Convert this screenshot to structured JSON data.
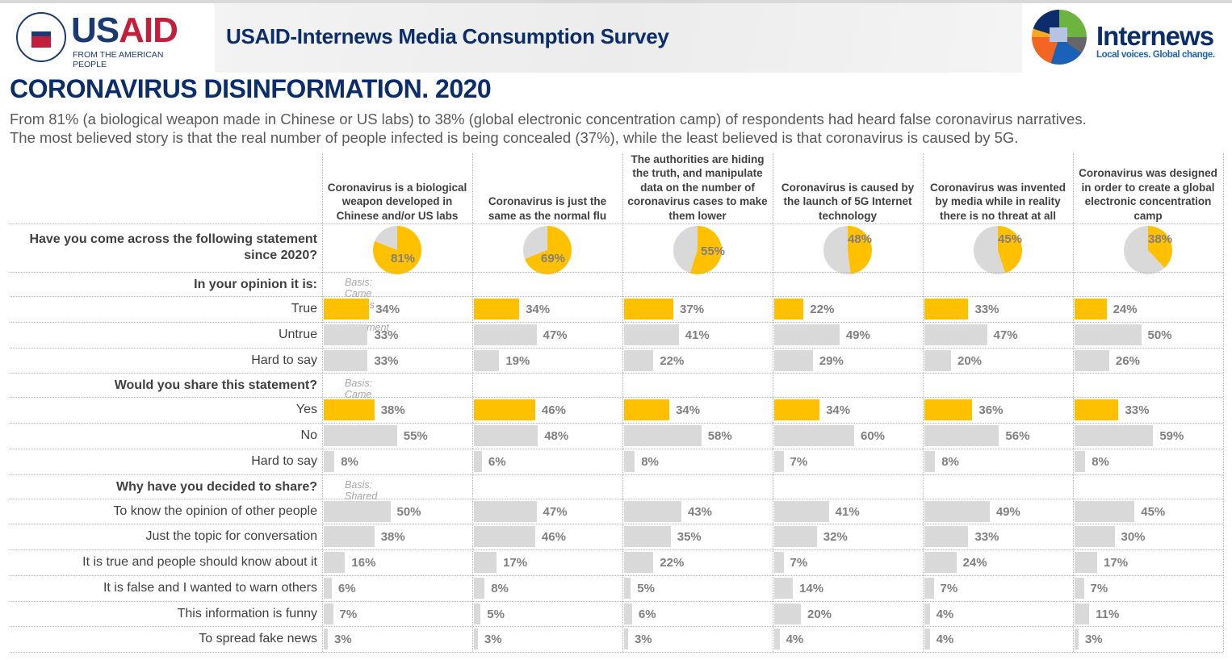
{
  "header": {
    "usaid_logo": {
      "brand_us": "US",
      "brand_aid": "AID",
      "tagline": "FROM THE AMERICAN PEOPLE"
    },
    "survey_title": "USAID-Internews Media Consumption Survey",
    "internews_logo": {
      "brand": "Internews",
      "tagline": "Local voices. Global change."
    }
  },
  "title": "CORONAVIRUS DISINFORMATION. 2020",
  "subtitle_lines": [
    "From 81% (a biological weapon made in Chinese or US labs) to 38% (global electronic concentration camp) of respondents had heard false coronavirus narratives.",
    "The most believed story is that the real number of people infected is being concealed (37%), while the least believed is that coronavirus is caused by 5G."
  ],
  "colors": {
    "highlight": "#FFC000",
    "neutral": "#D9D9D9",
    "navy": "#0B2D6B"
  },
  "chart_data": {
    "type": "table",
    "statements": [
      "Coronavirus is a biological weapon developed in Chinese and/or US labs",
      "Coronavirus is just the same as the normal flu",
      "The authorities are hiding the truth, and manipulate data on the number of coronavirus cases to make them lower",
      "Coronavirus is caused by the launch of  5G Internet technology",
      "Coronavirus was invented by media while in reality there is no threat at all",
      "Coronavirus was designed in order to create a global electronic concentration camp"
    ],
    "awareness": {
      "question": "Have you come across the following statement since 2020?",
      "type": "pie",
      "values": [
        81,
        69,
        55,
        48,
        45,
        38
      ]
    },
    "sections": [
      {
        "question": "In your opinion it is:",
        "basis": "Basis: Came across the statement",
        "rows": [
          {
            "label": "True",
            "highlight": true,
            "values": [
              34,
              34,
              37,
              22,
              33,
              24
            ]
          },
          {
            "label": "Untrue",
            "highlight": false,
            "values": [
              33,
              47,
              41,
              49,
              47,
              50
            ]
          },
          {
            "label": "Hard to say",
            "highlight": false,
            "values": [
              33,
              19,
              22,
              29,
              20,
              26
            ]
          }
        ]
      },
      {
        "question": "Would you share this statement?",
        "basis": "Basis: Came across the statement",
        "rows": [
          {
            "label": "Yes",
            "highlight": true,
            "values": [
              38,
              46,
              34,
              34,
              36,
              33
            ]
          },
          {
            "label": "No",
            "highlight": false,
            "values": [
              55,
              48,
              58,
              60,
              56,
              59
            ]
          },
          {
            "label": "Hard to say",
            "highlight": false,
            "values": [
              8,
              6,
              8,
              7,
              8,
              8
            ]
          }
        ]
      },
      {
        "question": "Why have you decided to share?",
        "basis": "Basis: Shared the statement",
        "rows": [
          {
            "label": "To know the opinion of other people",
            "highlight": false,
            "values": [
              50,
              47,
              43,
              41,
              49,
              45
            ]
          },
          {
            "label": "Just the topic for conversation",
            "highlight": false,
            "values": [
              38,
              46,
              35,
              32,
              33,
              30
            ]
          },
          {
            "label": "It is true and people should know about it",
            "highlight": false,
            "values": [
              16,
              17,
              22,
              7,
              24,
              17
            ]
          },
          {
            "label": "It is false and I wanted to warn others",
            "highlight": false,
            "values": [
              6,
              8,
              5,
              14,
              7,
              7
            ]
          },
          {
            "label": "This information is funny",
            "highlight": false,
            "values": [
              7,
              5,
              6,
              20,
              4,
              11
            ]
          },
          {
            "label": "To spread fake news",
            "highlight": false,
            "values": [
              3,
              3,
              3,
              4,
              4,
              3
            ]
          }
        ]
      }
    ],
    "unit": "%"
  }
}
